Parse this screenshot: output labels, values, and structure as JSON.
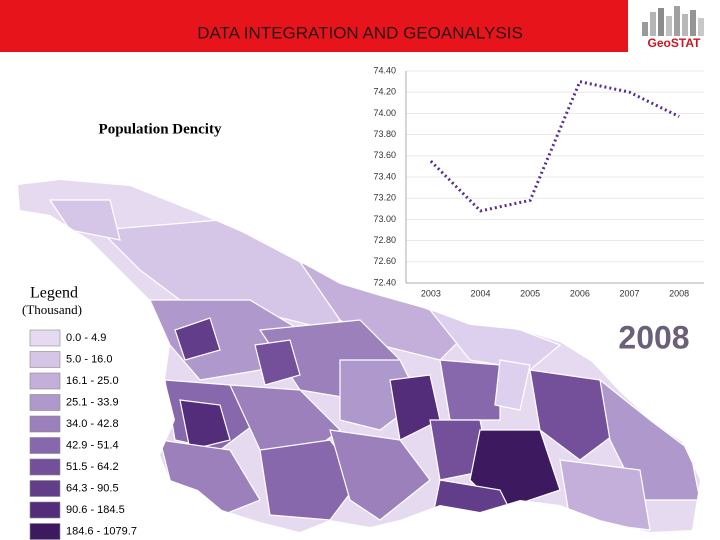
{
  "header": {
    "title": "DATA  INTEGRATION AND GEOANALYSIS",
    "logo": "GeoSTAT"
  },
  "map": {
    "title": "Population Dencity",
    "legend_title": "Legend",
    "legend_unit": "(Thousand)",
    "legend": [
      {
        "label": "0.0 - 4.9",
        "color": "#e6daf1"
      },
      {
        "label": "5.0 - 16.0",
        "color": "#d5c5e7"
      },
      {
        "label": "16.1 - 25.0",
        "color": "#c3afda"
      },
      {
        "label": "25.1 - 33.9",
        "color": "#af98cb"
      },
      {
        "label": "34.0 - 42.8",
        "color": "#9b80bb"
      },
      {
        "label": "42.9 - 51.4",
        "color": "#8868ac"
      },
      {
        "label": "51.5 - 64.2",
        "color": "#74509a"
      },
      {
        "label": "64.3 - 90.5",
        "color": "#623d89"
      },
      {
        "label": "90.6 - 184.5",
        "color": "#532d7a"
      },
      {
        "label": "184.6 - 1079.7",
        "color": "#3d1a5f"
      }
    ]
  },
  "year_label": "2008",
  "chart_data": {
    "type": "line",
    "categories": [
      "2003",
      "2004",
      "2005",
      "2006",
      "2007",
      "2008"
    ],
    "values": [
      73.55,
      73.08,
      73.18,
      74.3,
      74.2,
      73.97
    ],
    "color": "#5b2d8e",
    "ylim": [
      72.4,
      74.4
    ],
    "yticks": [
      {
        "value": 72.4,
        "label": "72.40"
      },
      {
        "value": 72.6,
        "label": "72.60"
      },
      {
        "value": 72.8,
        "label": "72.80"
      },
      {
        "value": 73,
        "label": "73.00"
      },
      {
        "value": 73.2,
        "label": "73.20"
      },
      {
        "value": 73.4,
        "label": "73.40"
      },
      {
        "value": 73.6,
        "label": "73.60"
      },
      {
        "value": 73.8,
        "label": "73.80"
      },
      {
        "value": 74,
        "label": "74.00"
      },
      {
        "value": 74.2,
        "label": "74.20"
      },
      {
        "value": 74.4,
        "label": "74.40"
      }
    ],
    "grid": true
  }
}
